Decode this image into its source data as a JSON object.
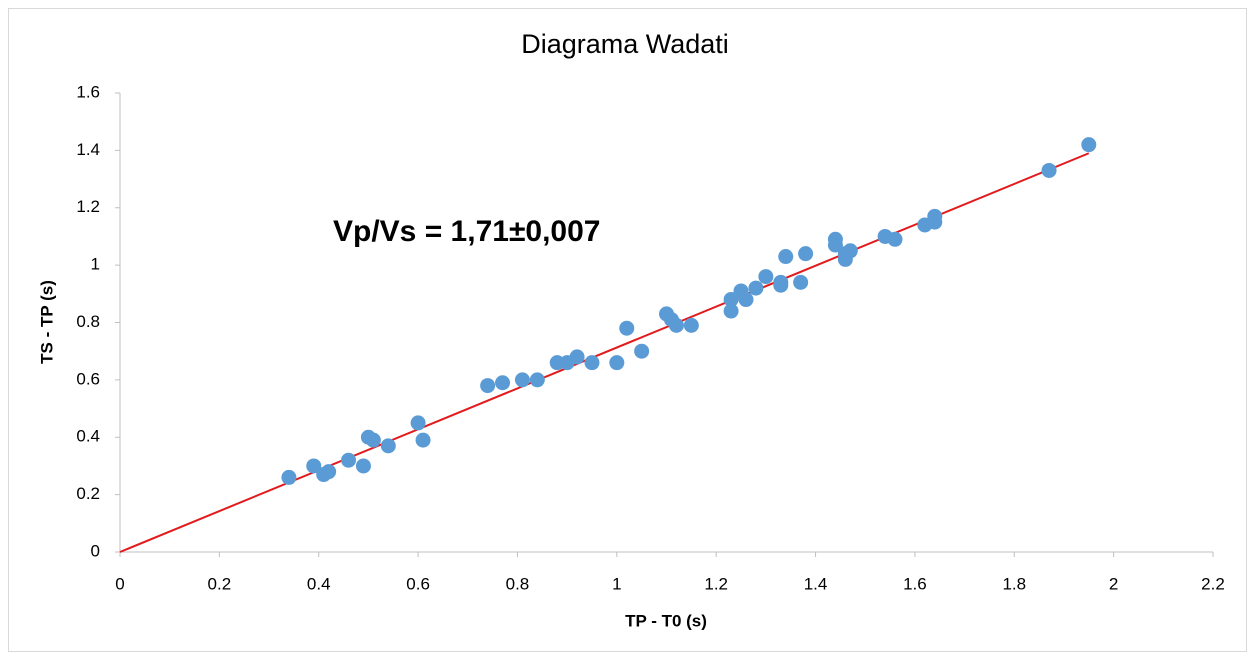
{
  "chart_data": {
    "type": "scatter",
    "title": "Diagrama Wadati",
    "x_label": "TP - T0 (s)",
    "y_label": "TS - TP (s)",
    "annotation": "Vp/Vs = 1,71±0,007",
    "color": "#5b9bd5",
    "x": [
      0.34,
      0.39,
      0.41,
      0.42,
      0.46,
      0.49,
      0.5,
      0.51,
      0.54,
      0.6,
      0.61,
      0.74,
      0.77,
      0.81,
      0.84,
      0.88,
      0.9,
      0.92,
      0.95,
      1.0,
      1.02,
      1.05,
      1.1,
      1.11,
      1.12,
      1.15,
      1.23,
      1.23,
      1.25,
      1.26,
      1.28,
      1.3,
      1.33,
      1.33,
      1.34,
      1.37,
      1.38,
      1.44,
      1.44,
      1.46,
      1.46,
      1.47,
      1.54,
      1.56,
      1.62,
      1.64,
      1.64,
      1.87,
      1.95
    ],
    "values": [
      0.26,
      0.3,
      0.27,
      0.28,
      0.32,
      0.3,
      0.4,
      0.39,
      0.37,
      0.45,
      0.39,
      0.58,
      0.59,
      0.6,
      0.6,
      0.66,
      0.66,
      0.68,
      0.66,
      0.66,
      0.78,
      0.7,
      0.83,
      0.81,
      0.79,
      0.79,
      0.84,
      0.88,
      0.91,
      0.88,
      0.92,
      0.96,
      0.94,
      0.93,
      1.03,
      0.94,
      1.04,
      1.09,
      1.07,
      1.02,
      1.04,
      1.05,
      1.1,
      1.09,
      1.14,
      1.17,
      1.15,
      1.33,
      1.42
    ],
    "fit": {
      "color": "#e31a1c",
      "x": [
        0,
        1.95
      ],
      "values": [
        0,
        1.39
      ]
    },
    "xlim": [
      0,
      2.2
    ],
    "xticks": [
      0,
      0.2,
      0.4,
      0.6,
      0.8,
      1,
      1.2,
      1.4,
      1.6,
      1.8,
      2,
      2.2
    ],
    "ylim": [
      0,
      1.6
    ],
    "yticks": [
      0,
      0.2,
      0.4,
      0.6,
      0.8,
      1,
      1.2,
      1.4,
      1.6
    ]
  }
}
